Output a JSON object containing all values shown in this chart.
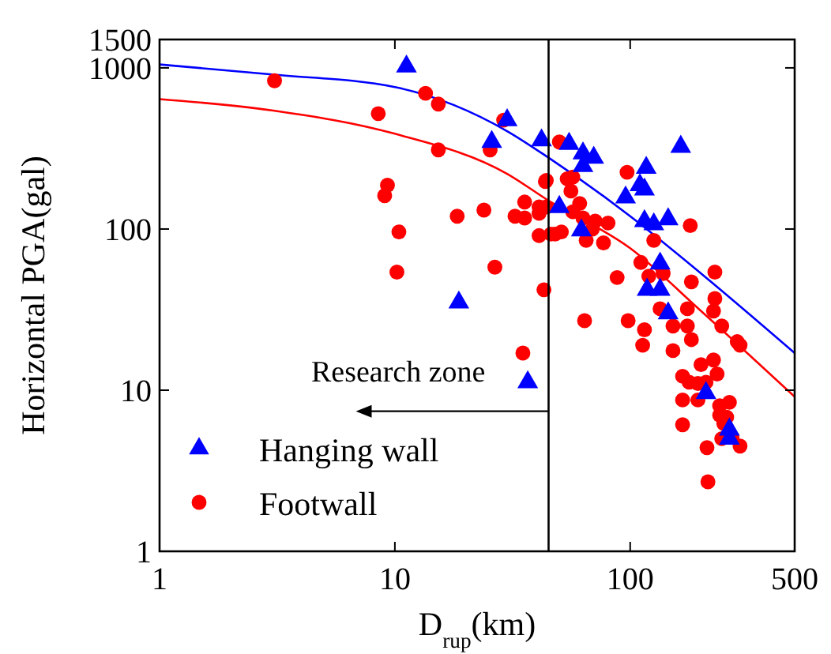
{
  "chart_data": {
    "type": "scatter",
    "xlabel": "D$_{rup}$(km)",
    "ylabel": "Horizontal PGA(gal)",
    "log": "xy",
    "xlim": [
      1,
      500
    ],
    "ylim": [
      1,
      1500
    ],
    "xticks": [
      1,
      10,
      100,
      500
    ],
    "yticks": [
      1,
      10,
      100,
      1000,
      1500
    ],
    "grid": false,
    "legend": "bottom left",
    "ref_lines": [
      {
        "axis": "x",
        "value": 45,
        "color": "#000000"
      }
    ],
    "annotations": [
      {
        "text": "Research zone",
        "x": 45,
        "y": 7.4
      }
    ],
    "series": [
      {
        "name": "Hanging wall",
        "color": "#0000ff",
        "marker": "triangle",
        "x": [
          11.2,
          30,
          25.8,
          42,
          50,
          18.7,
          36.7,
          55,
          63,
          70,
          63,
          62,
          117,
          110,
          115,
          95.6,
          164,
          115,
          126,
          145,
          134,
          118,
          134,
          145,
          210,
          264,
          264
        ],
        "values": [
          1020,
          474,
          347,
          355,
          137,
          35,
          11.2,
          338,
          295,
          277,
          246,
          98,
          240,
          187,
          176,
          157,
          324,
          112,
          107,
          115,
          61,
          42,
          42,
          30,
          9.6,
          5.7,
          5.0
        ]
      },
      {
        "name": "Footwall",
        "color": "#ff0000",
        "marker": "circle",
        "x": [
          3.08,
          8.5,
          13.5,
          15.3,
          29,
          25.4,
          15.3,
          9.3,
          9.05,
          10.4,
          10.2,
          18.4,
          23.9,
          26.6,
          32.4,
          35.6,
          35.6,
          41,
          41,
          43.6,
          44,
          41,
          46,
          51,
          43,
          50,
          35,
          44,
          54,
          57,
          56,
          61,
          57,
          63,
          48,
          71,
          80.5,
          69,
          65,
          77,
          97,
          180,
          126,
          88,
          111,
          120,
          138,
          182,
          229,
          229,
          226,
          245,
          285,
          293,
          134,
          152,
          175,
          175,
          182,
          64,
          98,
          115,
          113,
          152,
          200,
          226,
          234,
          167,
          178,
          194,
          210,
          167,
          194,
          240,
          264,
          240,
          257,
          250,
          167,
          245,
          271,
          293,
          212,
          214
        ],
        "values": [
          832,
          520,
          695,
          596,
          474,
          310,
          310,
          187,
          161,
          96,
          54,
          120,
          131,
          58,
          120,
          117,
          147,
          137,
          125,
          197,
          137,
          91,
          93,
          96,
          42,
          347,
          17,
          200,
          205,
          210,
          172,
          144,
          128,
          117,
          93,
          112,
          109,
          100,
          85,
          82,
          225,
          105,
          85,
          50,
          62,
          51,
          53,
          47,
          54,
          37,
          31,
          25,
          20,
          19,
          32,
          25,
          32,
          25,
          20.6,
          27,
          27,
          23.7,
          19,
          17.6,
          14.4,
          15.4,
          12.6,
          12.2,
          11.2,
          11.0,
          11.2,
          8.7,
          8.7,
          8.0,
          8.4,
          7.0,
          6.8,
          6.2,
          6.1,
          5.0,
          5.1,
          4.5,
          4.4,
          2.7
        ]
      },
      {
        "type": "line",
        "color": "#0000ff",
        "x": [
          1,
          3,
          10,
          30,
          45,
          100,
          200,
          500
        ],
        "values": [
          1050,
          910,
          760,
          405,
          277,
          120,
          53,
          17
        ]
      },
      {
        "type": "line",
        "color": "#ff0000",
        "x": [
          1,
          3,
          10,
          30,
          45,
          100,
          200,
          500
        ],
        "values": [
          640,
          545,
          390,
          220,
          150,
          76,
          31,
          9.1
        ]
      }
    ]
  }
}
